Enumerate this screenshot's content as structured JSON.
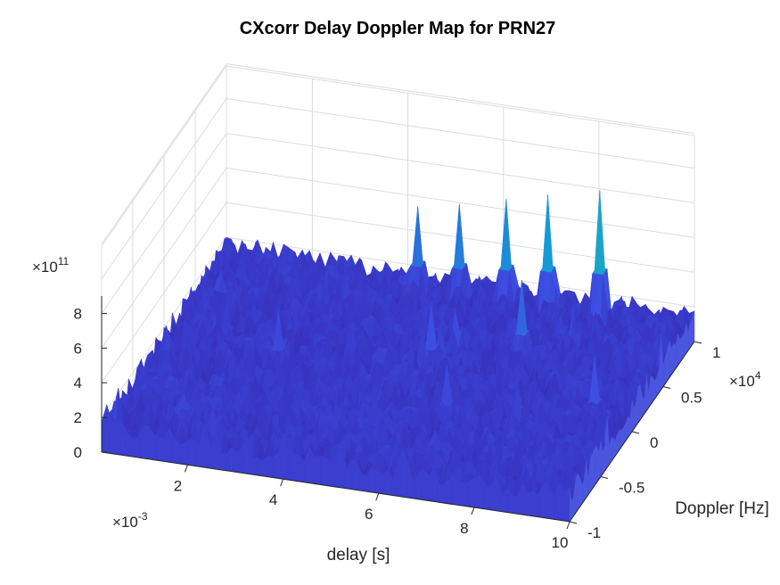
{
  "chart_data": {
    "type": "surface",
    "title": "CXcorr Delay Doppler Map for PRN27",
    "xlabel": "delay [s]",
    "ylabel": "Doppler [Hz]",
    "zlabel": "",
    "x_multiplier": "×10",
    "x_multiplier_exp": "-3",
    "y_multiplier": "×10",
    "y_multiplier_exp": "4",
    "z_multiplier": "×10",
    "z_multiplier_exp": "11",
    "x_ticks": [
      "2",
      "4",
      "6",
      "8",
      "10"
    ],
    "y_ticks": [
      "-1",
      "-0.5",
      "0",
      "0.5",
      "1"
    ],
    "z_ticks": [
      "0",
      "2",
      "4",
      "6",
      "8"
    ],
    "xlim": [
      0.0002,
      0.01
    ],
    "ylim": [
      -10000,
      10000
    ],
    "zlim": [
      0,
      900000000000.0
    ],
    "grid": true,
    "colormap": "parula",
    "noise_floor_approx": 150000000000.0,
    "peaks": [
      {
        "delay": 0.0081,
        "doppler": 9000,
        "value": 850000000000.0
      },
      {
        "delay": 0.0071,
        "doppler": 9000,
        "value": 780000000000.0
      },
      {
        "delay": 0.0062,
        "doppler": 9000,
        "value": 720000000000.0
      },
      {
        "delay": 0.0052,
        "doppler": 9000,
        "value": 650000000000.0
      },
      {
        "delay": 0.0043,
        "doppler": 9000,
        "value": 600000000000.0
      },
      {
        "delay": 0.0072,
        "doppler": 4000,
        "value": 550000000000.0
      },
      {
        "delay": 0.0055,
        "doppler": 2000,
        "value": 450000000000.0
      },
      {
        "delay": 0.0093,
        "doppler": -1000,
        "value": 450000000000.0
      },
      {
        "delay": 0.0026,
        "doppler": 0,
        "value": 400000000000.0
      },
      {
        "delay": 0.0065,
        "doppler": -3000,
        "value": 400000000000.0
      }
    ]
  },
  "colors": {
    "surface_low": "#3d33c9",
    "surface_mid": "#2aa8d8",
    "surface_high": "#f0e11c",
    "axis": "#262626",
    "grid": "#dcdcdc"
  }
}
